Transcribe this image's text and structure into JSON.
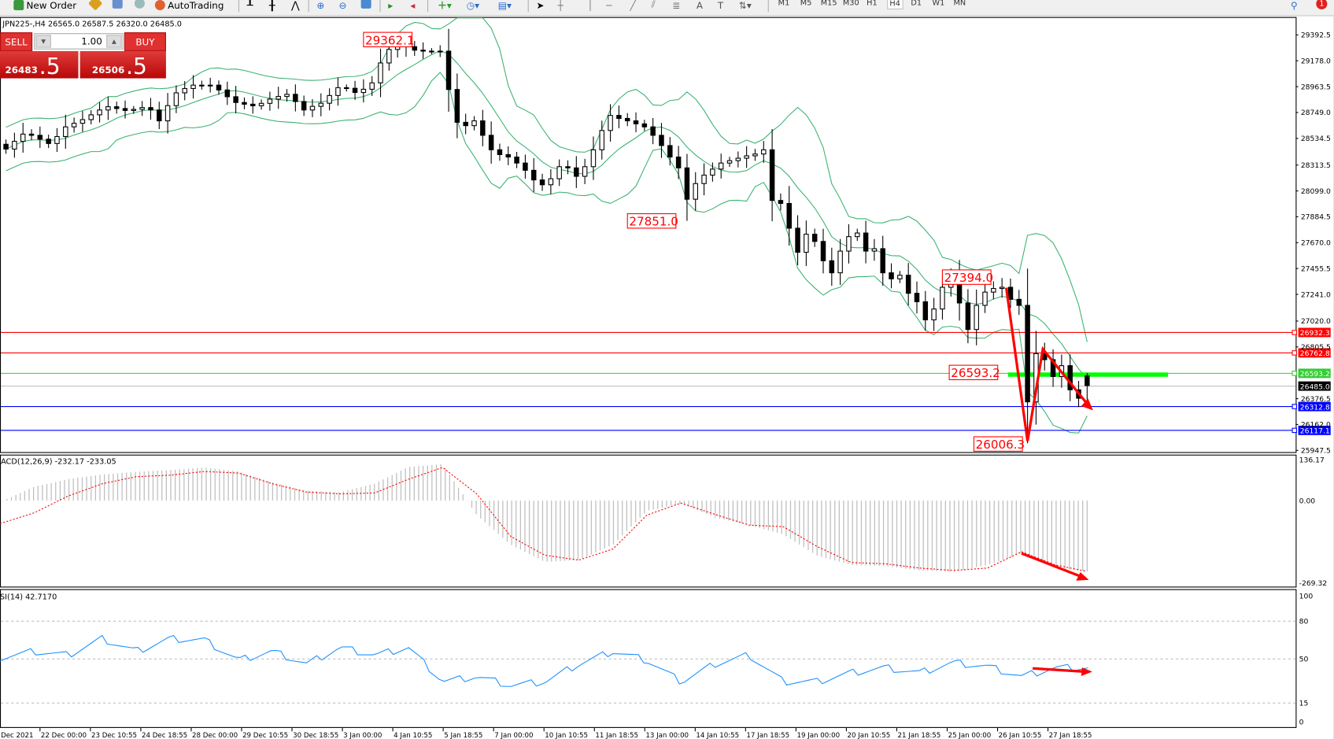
{
  "toolbar": {
    "new_order": "New Order",
    "autotrading": "AutoTrading",
    "timeframes": [
      "M1",
      "M5",
      "M15",
      "M30",
      "H1",
      "H4",
      "D1",
      "W1",
      "MN"
    ],
    "selected_timeframe": "H4",
    "notification_count": "1"
  },
  "chart": {
    "header": "JPN225-,H4  26565.0 26587.5 26320.0 26485.0",
    "last_candle": {
      "open": 26565.0,
      "high": 26587.5,
      "low": 26320.0,
      "close": 26485.0
    }
  },
  "trade_panel": {
    "sell_label": "SELL",
    "buy_label": "BUY",
    "volume": "1.00",
    "sell_price_main": "26483",
    "sell_price_frac": ".5",
    "buy_price_main": "26506",
    "buy_price_frac": ".5"
  },
  "colors": {
    "bands": "#3cb371",
    "bear": "#000000",
    "bull": "#ffffff",
    "annotation": "#ff0000",
    "macd_signal": "#ff0000",
    "rsi": "#1e90ff",
    "support": "#0000ff",
    "pivot": "#32cd32"
  },
  "price_axis": [
    "29392.5",
    "29178.0",
    "28963.5",
    "28749.0",
    "28534.5",
    "28313.5",
    "28099.0",
    "27884.5",
    "27670.0",
    "27455.5",
    "27241.0",
    "27020.0",
    "26805.5",
    "26376.5",
    "26162.0",
    "25947.5"
  ],
  "levels": [
    {
      "price": "26932.3",
      "color": "#ff0000"
    },
    {
      "price": "26762.8",
      "color": "#ff0000"
    },
    {
      "price": "26593.2",
      "color": "#32cd32"
    },
    {
      "price": "26485.0",
      "color": "#000000"
    },
    {
      "price": "26312.8",
      "color": "#0000ff"
    },
    {
      "price": "26117.1",
      "color": "#0000ff"
    }
  ],
  "annotations": [
    "29362.1",
    "27851.0",
    "27394.0",
    "26593.2",
    "26006.3"
  ],
  "candles_close": [
    28446,
    28510,
    28570,
    28560,
    28528,
    28492,
    28550,
    28630,
    28660,
    28690,
    28730,
    28770,
    28797,
    28782,
    28766,
    28775,
    28790,
    28770,
    28680,
    28806,
    28912,
    28948,
    28976,
    28976,
    28976,
    28936,
    28880,
    28832,
    28818,
    28805,
    28825,
    28860,
    28882,
    28900,
    28840,
    28770,
    28800,
    28826,
    28890,
    28955,
    28950,
    28915,
    28942,
    28995,
    29160,
    29272,
    29325,
    29295,
    29266,
    29258,
    29258,
    29258,
    28940,
    28668,
    28640,
    28680,
    28560,
    28440,
    28400,
    28380,
    28330,
    28270,
    28190,
    28150,
    28200,
    28300,
    28290,
    28220,
    28300,
    28440,
    28600,
    28725,
    28700,
    28680,
    28655,
    28630,
    28560,
    28475,
    28380,
    28290,
    28030,
    28160,
    28230,
    28280,
    28330,
    28350,
    28370,
    28390,
    28405,
    28440,
    28020,
    27995,
    27790,
    27590,
    27740,
    27680,
    27520,
    27420,
    27600,
    27720,
    27750,
    27600,
    27620,
    27420,
    27370,
    27400,
    27250,
    27180,
    27030,
    27120,
    27300,
    27380,
    27170,
    26950,
    27150,
    27260,
    27290,
    27300,
    27200,
    27150,
    26350,
    26750,
    26700,
    26560,
    26650,
    26450,
    26380,
    26485
  ],
  "macd": {
    "label": "ACD(12,26,9) -232.17 -233.05",
    "axis": [
      "136.17",
      "0.00",
      "-269.32"
    ],
    "histogram": [
      -5,
      45,
      70,
      85,
      94,
      100,
      108,
      95,
      60,
      32,
      28,
      55,
      110,
      119,
      -47,
      -144,
      -200,
      -194,
      -144,
      -33,
      -10,
      -55,
      -80,
      -110,
      -180,
      -210,
      -214,
      -228,
      -232,
      -210,
      -172,
      -220,
      -232
    ],
    "signal": [
      -75,
      -40,
      15,
      55,
      78,
      83,
      95,
      90,
      55,
      28,
      22,
      25,
      70,
      108,
      22,
      -117,
      -178,
      -194,
      -158,
      -47,
      -8,
      -45,
      -80,
      -85,
      -150,
      -202,
      -206,
      -220,
      -228,
      -220,
      -167,
      -210,
      -233
    ]
  },
  "rsi": {
    "label": "SI(14) 42.7170",
    "axis": [
      "100",
      "80",
      "50",
      "15",
      "0"
    ],
    "levels": [
      80,
      50,
      15
    ],
    "values": [
      51,
      56,
      53,
      66,
      56,
      66,
      65,
      49,
      56,
      46,
      59,
      53,
      59,
      32,
      36,
      29,
      32,
      46,
      56,
      49,
      32,
      46,
      53,
      32,
      32,
      39,
      43,
      39,
      47,
      44,
      36,
      43,
      43
    ]
  },
  "time_axis": [
    "Dec 2021",
    "22 Dec 00:00",
    "23 Dec 10:55",
    "24 Dec 18:55",
    "28 Dec 00:00",
    "29 Dec 10:55",
    "30 Dec 18:55",
    "3 Jan 00:00",
    "4 Jan 10:55",
    "5 Jan 18:55",
    "7 Jan 00:00",
    "10 Jan 10:55",
    "11 Jan 18:55",
    "13 Jan 00:00",
    "14 Jan 10:55",
    "17 Jan 18:55",
    "19 Jan 00:00",
    "20 Jan 10:55",
    "21 Jan 18:55",
    "25 Jan 00:00",
    "26 Jan 10:55",
    "27 Jan 18:55"
  ]
}
